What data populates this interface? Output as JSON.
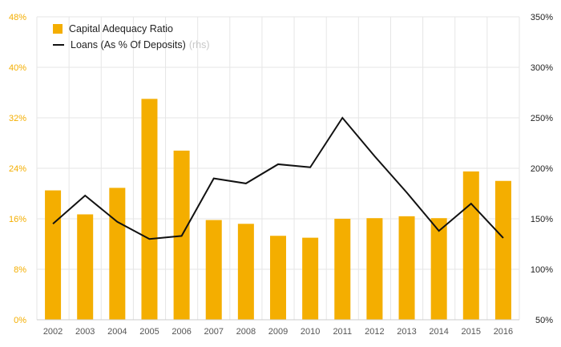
{
  "chart_data": {
    "type": "bar+line",
    "categories": [
      "2002",
      "2003",
      "2004",
      "2005",
      "2006",
      "2007",
      "2008",
      "2009",
      "2010",
      "2011",
      "2012",
      "2013",
      "2014",
      "2015",
      "2016"
    ],
    "series": [
      {
        "name": "Capital Adequacy Ratio",
        "type": "bar",
        "axis": "left",
        "values": [
          20.5,
          16.7,
          20.9,
          35.0,
          26.8,
          15.8,
          15.2,
          13.3,
          13.0,
          16.0,
          16.1,
          16.4,
          16.1,
          23.5,
          22.0
        ]
      },
      {
        "name": "Loans (As % Of Deposits)",
        "note": "(rhs)",
        "type": "line",
        "axis": "right",
        "values": [
          145,
          173,
          147,
          130,
          133,
          190,
          185,
          204,
          201,
          250,
          212,
          176,
          138,
          165,
          131
        ]
      }
    ],
    "y_left": {
      "min": 0,
      "max": 48,
      "ticks": [
        0,
        8,
        16,
        24,
        32,
        40,
        48
      ],
      "suffix": "%"
    },
    "y_right": {
      "min": 50,
      "max": 350,
      "ticks": [
        50,
        100,
        150,
        200,
        250,
        300,
        350
      ],
      "suffix": "%"
    },
    "grid": true,
    "legend_position": "top-left",
    "colors": {
      "bar": "#f4ae00",
      "line": "#111111",
      "grid": "#e6e6e6",
      "left_axis": "#f4ae00",
      "right_axis": "#222222"
    }
  }
}
